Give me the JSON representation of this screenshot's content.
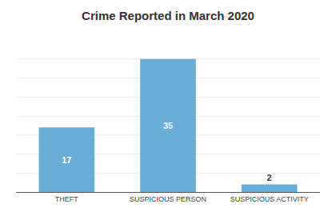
{
  "chart_data": {
    "type": "bar",
    "title": "Crime Reported in March 2020",
    "categories": [
      "THEFT",
      "SUSPICIOUS PERSON",
      "SUSPICIOUS ACTIVITY"
    ],
    "values": [
      17,
      35,
      2
    ],
    "color": "#6aaed6",
    "ylim": [
      0,
      40
    ],
    "yticks": [
      0,
      5,
      10,
      15,
      20,
      25,
      30,
      35,
      40
    ],
    "grid": true,
    "data_labels": true,
    "tick_labels": "x"
  }
}
